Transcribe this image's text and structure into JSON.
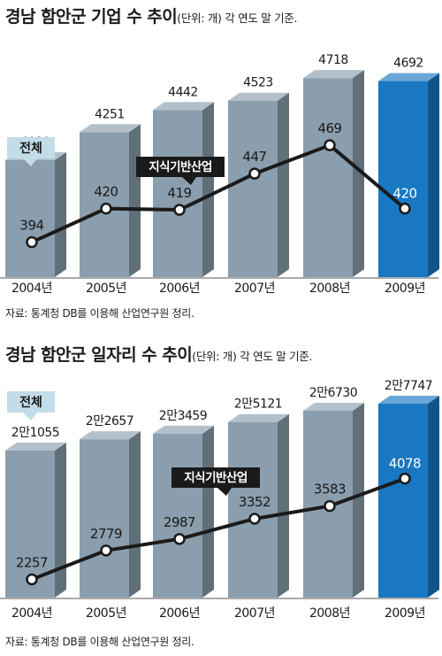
{
  "chart_data": [
    {
      "type": "bar",
      "title": "경남 함안군 기업 수 추이",
      "subtitle": "(단위: 개) 각 연도 말 기준.",
      "categories": [
        "2004년",
        "2005년",
        "2006년",
        "2007년",
        "2008년",
        "2009년"
      ],
      "series": [
        {
          "name": "전체",
          "type": "bar",
          "values": [
            4010,
            4251,
            4442,
            4523,
            4718,
            4692
          ]
        },
        {
          "name": "지식기반산업",
          "type": "line",
          "values": [
            394,
            420,
            419,
            447,
            469,
            420
          ]
        }
      ],
      "source": "자료: 통계청 DB를 이용해 산업연구원 정리.",
      "colors": {
        "bar": "#8a9ead",
        "highlight_bar": "#1a78c2",
        "line": "#1a1a1a"
      }
    },
    {
      "type": "bar",
      "title": "경남 함안군 일자리 수 추이",
      "subtitle": "(단위: 개) 각 연도 말 기준.",
      "categories": [
        "2004년",
        "2005년",
        "2006년",
        "2007년",
        "2008년",
        "2009년"
      ],
      "series": [
        {
          "name": "전체",
          "type": "bar",
          "values": [
            21055,
            22657,
            23459,
            25121,
            26730,
            27747
          ],
          "labels": [
            "2만1055",
            "2만2657",
            "2만3459",
            "2만5121",
            "2만6730",
            "2만7747"
          ]
        },
        {
          "name": "지식기반산업",
          "type": "line",
          "values": [
            2257,
            2779,
            2987,
            3352,
            3583,
            4078
          ]
        }
      ],
      "source": "자료: 통계청 DB를 이용해 산업연구원 정리.",
      "colors": {
        "bar": "#8a9ead",
        "highlight_bar": "#1a78c2",
        "line": "#1a1a1a"
      }
    }
  ]
}
